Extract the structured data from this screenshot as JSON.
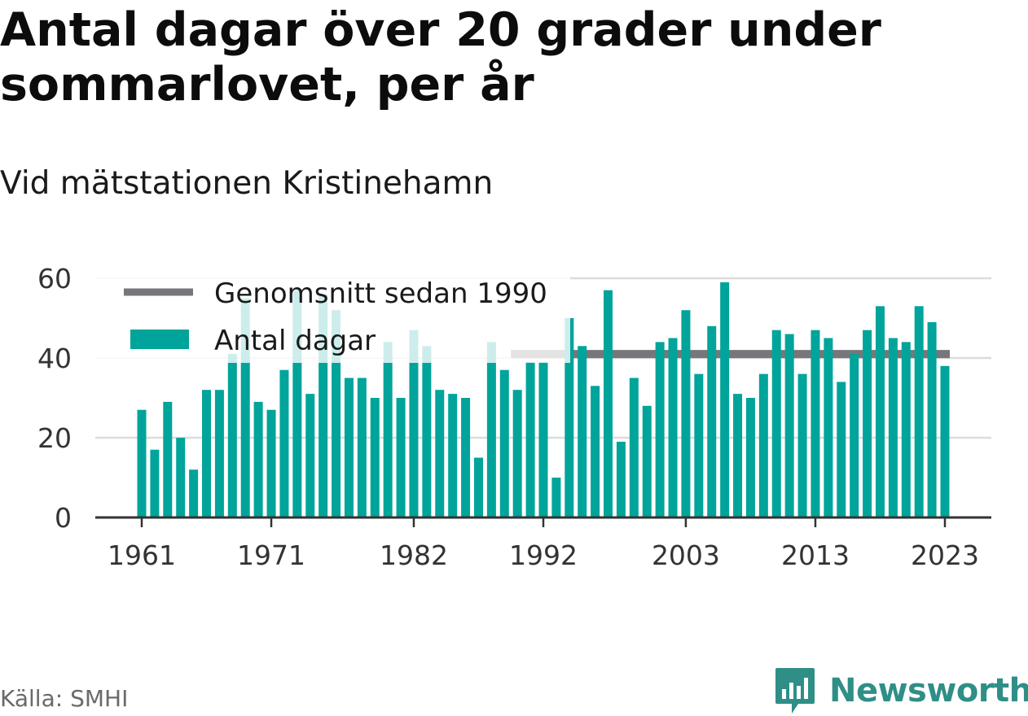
{
  "title": "Antal dagar över 20 grader under sommarlovet, per år",
  "subtitle": "Vid mätstationen Kristinehamn",
  "source": "Källa: SMHI",
  "brand": {
    "name": "Newsworthy",
    "logo_icon": "newsworthy-logo-icon"
  },
  "colors": {
    "bar": "#00a49a",
    "average": "#77767b",
    "grid": "#dcdcdc",
    "axis": "#333333",
    "brand": "#2f8f87"
  },
  "chart_data": {
    "type": "bar",
    "x": [
      1961,
      1962,
      1963,
      1964,
      1965,
      1966,
      1967,
      1968,
      1969,
      1970,
      1971,
      1972,
      1973,
      1974,
      1975,
      1976,
      1977,
      1978,
      1979,
      1980,
      1981,
      1982,
      1983,
      1984,
      1985,
      1986,
      1987,
      1988,
      1989,
      1990,
      1991,
      1992,
      1993,
      1994,
      1995,
      1996,
      1997,
      1998,
      1999,
      2000,
      2001,
      2002,
      2003,
      2004,
      2005,
      2006,
      2007,
      2008,
      2009,
      2010,
      2011,
      2012,
      2013,
      2014,
      2015,
      2016,
      2017,
      2018,
      2019,
      2020,
      2021,
      2022,
      2023
    ],
    "series": [
      {
        "name": "Antal dagar",
        "values": [
          27,
          17,
          29,
          20,
          12,
          32,
          32,
          41,
          55,
          29,
          27,
          37,
          57,
          31,
          56,
          52,
          35,
          35,
          30,
          44,
          30,
          47,
          43,
          32,
          31,
          30,
          15,
          44,
          37,
          32,
          39,
          39,
          10,
          50,
          43,
          33,
          57,
          19,
          35,
          28,
          44,
          45,
          52,
          36,
          48,
          59,
          31,
          30,
          36,
          47,
          46,
          36,
          47,
          45,
          34,
          41,
          47,
          53,
          45,
          44,
          53,
          49,
          38
        ]
      },
      {
        "name": "Genomsnitt sedan 1990",
        "value": 41,
        "from": 1990,
        "to": 2023
      }
    ],
    "x_ticks": [
      "1961",
      "1971",
      "1982",
      "1992",
      "2003",
      "2013",
      "2023"
    ],
    "y_ticks": [
      "0",
      "20",
      "40",
      "60"
    ],
    "ylim": [
      0,
      60
    ],
    "grid": true,
    "legend_position": "top-left",
    "legend": [
      {
        "label": "Genomsnitt sedan 1990",
        "kind": "line"
      },
      {
        "label": "Antal dagar",
        "kind": "bar"
      }
    ]
  }
}
